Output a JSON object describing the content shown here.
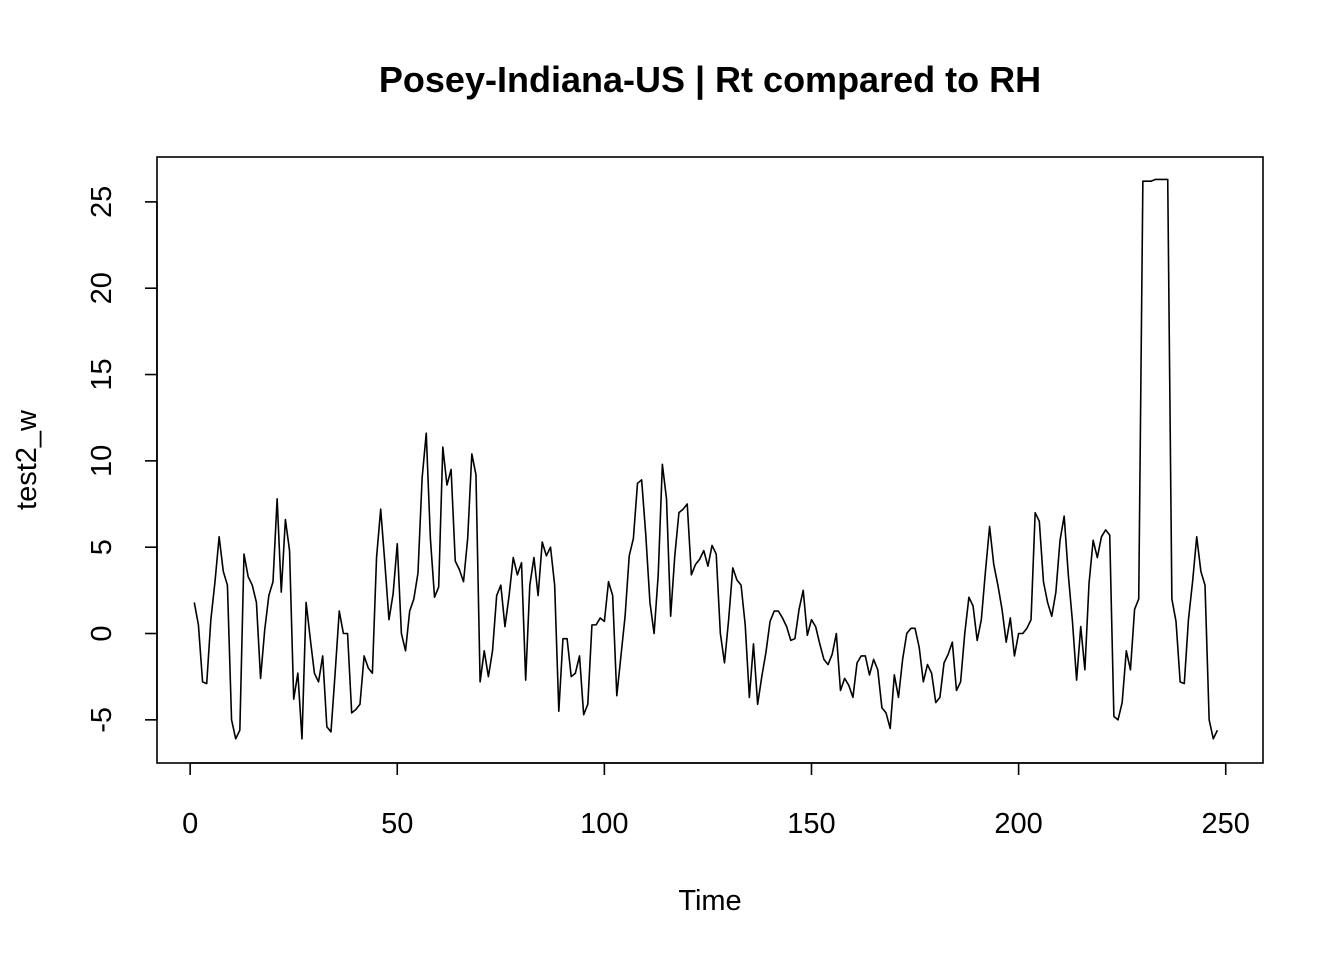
{
  "chart_data": {
    "type": "line",
    "title": "Posey-Indiana-US | Rt compared to RH",
    "xlabel": "Time",
    "ylabel": "test2_w",
    "xlim": [
      -8,
      259
    ],
    "ylim": [
      -7.5,
      27.6
    ],
    "x_ticks": [
      0,
      50,
      100,
      150,
      200,
      250
    ],
    "y_ticks": [
      -5,
      0,
      5,
      10,
      15,
      20,
      25
    ],
    "grid": false,
    "legend": "none",
    "series": [
      {
        "x_start": 1,
        "values": [
          1.8,
          0.5,
          -2.8,
          -2.9,
          0.8,
          3.0,
          5.6,
          3.6,
          2.8,
          -5.0,
          -6.1,
          -5.6,
          4.6,
          3.3,
          2.8,
          1.8,
          -2.6,
          0.2,
          2.2,
          3.0,
          7.8,
          2.4,
          6.6,
          4.8,
          -3.8,
          -2.3,
          -6.1,
          1.8,
          -0.3,
          -2.3,
          -2.8,
          -1.3,
          -5.4,
          -5.7,
          -2.3,
          1.3,
          0.0,
          0.0,
          -4.6,
          -4.4,
          -4.1,
          -1.3,
          -2.0,
          -2.3,
          4.4,
          7.2,
          4.1,
          0.8,
          2.3,
          5.2,
          0.0,
          -1.0,
          1.3,
          2.0,
          3.5,
          9.0,
          11.6,
          5.5,
          2.1,
          2.7,
          10.8,
          8.6,
          9.5,
          4.2,
          3.7,
          3.0,
          5.5,
          10.4,
          9.2,
          -2.8,
          -1.0,
          -2.5,
          -1.0,
          2.2,
          2.8,
          0.4,
          2.2,
          4.4,
          3.4,
          4.1,
          -2.7,
          2.8,
          4.4,
          2.2,
          5.3,
          4.5,
          5.0,
          2.8,
          -4.5,
          -0.3,
          -0.3,
          -2.5,
          -2.3,
          -1.3,
          -4.7,
          -4.1,
          0.5,
          0.5,
          0.9,
          0.7,
          3.0,
          2.2,
          -3.6,
          -1.3,
          1.0,
          4.5,
          5.5,
          8.7,
          8.9,
          5.7,
          1.8,
          0.0,
          3.4,
          9.8,
          7.8,
          1.0,
          4.5,
          7.0,
          7.2,
          7.5,
          3.4,
          4.0,
          4.3,
          4.8,
          3.9,
          5.1,
          4.6,
          0.0,
          -1.7,
          0.8,
          3.8,
          3.1,
          2.8,
          0.5,
          -3.7,
          -0.6,
          -4.1,
          -2.5,
          -1.1,
          0.7,
          1.3,
          1.3,
          0.9,
          0.4,
          -0.4,
          -0.3,
          1.4,
          2.5,
          -0.1,
          0.8,
          0.4,
          -0.6,
          -1.5,
          -1.8,
          -1.2,
          0.0,
          -3.3,
          -2.6,
          -3.0,
          -3.7,
          -1.7,
          -1.3,
          -1.3,
          -2.4,
          -1.5,
          -2.1,
          -4.3,
          -4.6,
          -5.5,
          -2.4,
          -3.7,
          -1.5,
          0.0,
          0.3,
          0.3,
          -0.8,
          -2.8,
          -1.8,
          -2.3,
          -4.0,
          -3.7,
          -1.7,
          -1.2,
          -0.5,
          -3.3,
          -2.8,
          0.0,
          2.1,
          1.6,
          -0.4,
          0.8,
          3.6,
          6.2,
          4.0,
          2.8,
          1.4,
          -0.5,
          0.9,
          -1.3,
          0.0,
          0.0,
          0.3,
          0.8,
          7.0,
          6.5,
          3.0,
          1.8,
          1.0,
          2.4,
          5.4,
          6.8,
          3.4,
          0.7,
          -2.7,
          0.4,
          -2.1,
          2.9,
          5.4,
          4.4,
          5.6,
          6.0,
          5.7,
          -4.8,
          -5.0,
          -4.0,
          -1.0,
          -2.1,
          1.4,
          2.0,
          26.2,
          26.2,
          26.2,
          26.3,
          26.3,
          26.3,
          26.3,
          2.0,
          0.7,
          -2.8,
          -2.9,
          0.8,
          3.0,
          5.6,
          3.6,
          2.8,
          -5.0,
          -6.1,
          -5.6
        ]
      }
    ]
  }
}
